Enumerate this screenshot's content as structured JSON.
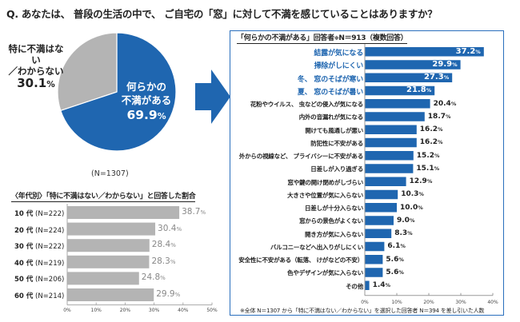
{
  "question": "Q. あなたは、 普段の生活の中で、 ご自宅の「窓」に対して不満を感じていることはありますか？",
  "colors": {
    "blue": "#1f66b0",
    "gray": "#b4b4b4",
    "frame": "#2a6fbd"
  },
  "chart_data": [
    {
      "type": "pie",
      "title": "",
      "note": "(N=1307)",
      "slices": [
        {
          "label": "何らかの不満がある",
          "label_lines": [
            "何らかの",
            "不満がある"
          ],
          "value": 69.9,
          "display": "69.9",
          "color": "#1f66b0"
        },
        {
          "label": "特に不満はない／わからない",
          "label_lines": [
            "特に不満はない",
            "／わからない"
          ],
          "value": 30.1,
          "display": "30.1",
          "color": "#b4b4b4"
        }
      ],
      "unit": "%"
    },
    {
      "type": "bar",
      "orientation": "horizontal",
      "title": "〈年代別〉「特に不満はない／わからない」と回答した割合",
      "categories": [
        "10 代",
        "20 代",
        "30 代",
        "40 代",
        "50 代",
        "60 代"
      ],
      "category_n": [
        "(N=222)",
        "(N=224)",
        "(N=222)",
        "(N=219)",
        "(N=206)",
        "(N=214)"
      ],
      "values": [
        38.7,
        30.4,
        28.4,
        28.3,
        24.8,
        29.9
      ],
      "xlim": [
        0,
        50
      ],
      "ticks": [
        "0%",
        "10%",
        "20%",
        "30%",
        "40%",
        "50%"
      ],
      "unit": "%",
      "color": "#b4b4b4"
    },
    {
      "type": "bar",
      "orientation": "horizontal",
      "title": "「何らかの不満がある」回答者",
      "title_mark": "※",
      "title_suffix": "N＝913（複数回答）",
      "categories": [
        "結露が気になる",
        "掃除がしにくい",
        "冬、 窓のそばが寒い",
        "夏、 窓のそばが暑い",
        "花粉やウイルス、 虫などの侵入が気になる",
        "内外の音漏れが気になる",
        "開けても風通しが悪い",
        "防犯性に不安がある",
        "外からの視線など、 プライバシーに不安がある",
        "日差しが入り過ぎる",
        "窓や鍵の開け閉めがしづらい",
        "大きさや位置が気に入らない",
        "日差しが十分入らない",
        "窓からの景色がよくない",
        "開き方が気に入らない",
        "バルコニーなどへ出入りがしにくい",
        "安全性に不安がある（転落、 けがなどの不安）",
        "色やデザインが気に入らない",
        "その他"
      ],
      "values": [
        37.2,
        29.9,
        27.3,
        21.8,
        20.4,
        18.7,
        16.2,
        16.2,
        15.2,
        15.1,
        12.9,
        10.3,
        10.0,
        9.0,
        8.3,
        6.1,
        5.6,
        5.6,
        1.4
      ],
      "highlight_top": 4,
      "xlim": [
        0,
        40
      ],
      "ticks": [
        "0%",
        "10%",
        "20%",
        "30%",
        "40%"
      ],
      "unit": "%",
      "color": "#1f66b0",
      "note": "※全体 N＝1307 から「特に不満はない／わからない」を選択した回答者 N＝394 を差し引いた人数"
    }
  ]
}
